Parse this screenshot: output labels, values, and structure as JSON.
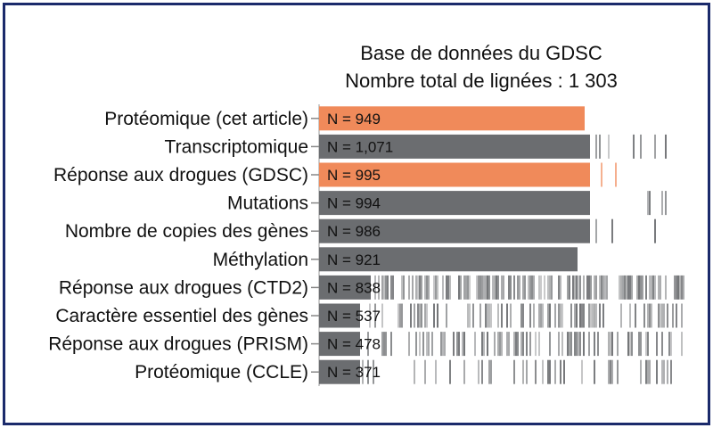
{
  "colors": {
    "border": "#1b2a6b",
    "gray": "#6b6d70",
    "orange": "#f08a5a",
    "background": "#ffffff"
  },
  "chart_data": {
    "type": "bar",
    "title": "Base de données du GDSC",
    "subtitle": "Nombre total de lignées : 1 303",
    "total": 1303,
    "orientation": "horizontal",
    "categories": [
      "Protéomique (cet article)",
      "Transcriptomique",
      "Réponse aux drogues  (GDSC)",
      "Mutations",
      "Nombre de copies des gènes",
      "Méthylation",
      "Réponse aux drogues (CTD2)",
      "Caractère essentiel des gènes",
      "Réponse aux drogues (PRISM)",
      "Protéomique (CCLE)"
    ],
    "value_labels": [
      "N = 949",
      "N = 1,071",
      "N = 995",
      "N = 994",
      "N = 986",
      "N = 921",
      "N = 838",
      "N = 537",
      "N = 478",
      "N = 371"
    ],
    "values": [
      949,
      1071,
      995,
      994,
      986,
      921,
      838,
      537,
      478,
      371
    ],
    "highlight": [
      true,
      false,
      true,
      false,
      false,
      false,
      false,
      false,
      false,
      false
    ]
  }
}
